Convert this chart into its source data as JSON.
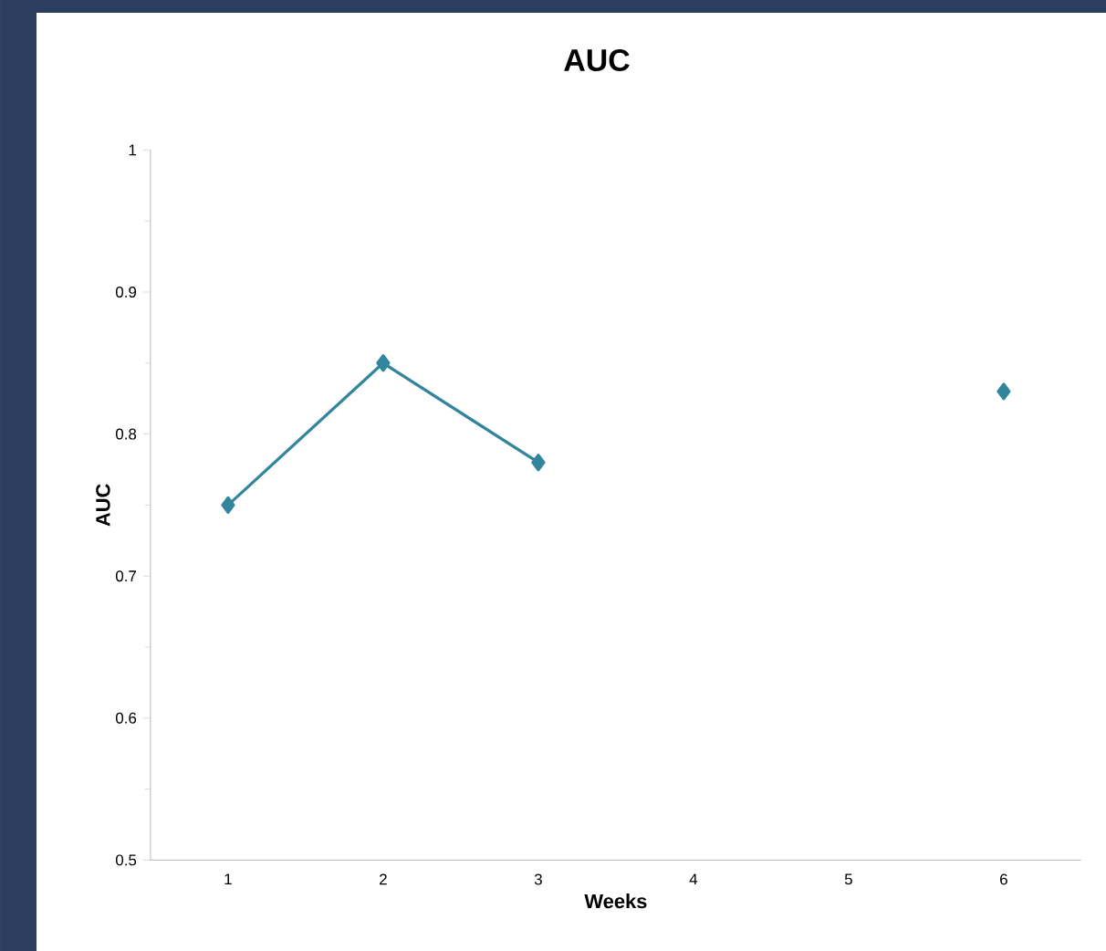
{
  "chart_data": {
    "type": "line",
    "title": "AUC",
    "xlabel": "Weeks",
    "ylabel": "AUC",
    "categories": [
      "1",
      "2",
      "3",
      "4",
      "5",
      "6"
    ],
    "series": [
      {
        "color": "#31859c",
        "values": [
          0.75,
          0.85,
          0.78,
          null,
          null,
          0.83
        ]
      }
    ],
    "ylim": [
      0.5,
      1
    ],
    "yticks": [
      0.5,
      0.6,
      0.7,
      0.8,
      0.9,
      1
    ],
    "marker": "diamond",
    "line_style": "solid"
  }
}
